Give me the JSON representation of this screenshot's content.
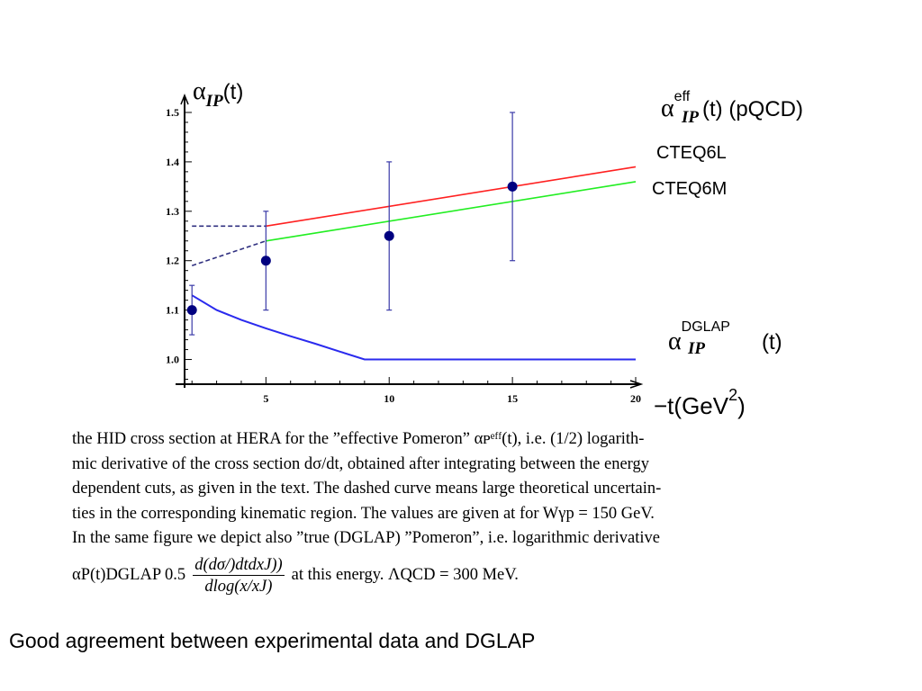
{
  "chart_data": {
    "type": "line",
    "title": "",
    "xlabel": "−t(GeV²)",
    "xlabel_main": "−t(GeV",
    "xlabel_sup": "2",
    "xlabel_close": ")",
    "ylabel_base": "α",
    "ylabel_sub": "IP",
    "ylabel_tail": "(t)",
    "xlim": [
      1.7,
      20
    ],
    "ylim": [
      0.95,
      1.52
    ],
    "x_ticks": [
      5,
      10,
      15,
      20
    ],
    "x_tick_labels": [
      "5",
      "10",
      "15",
      "20"
    ],
    "y_ticks": [
      1.0,
      1.1,
      1.2,
      1.3,
      1.4,
      1.5
    ],
    "y_tick_labels": [
      "1.0",
      "1.1",
      "1.2",
      "1.3",
      "1.4",
      "1.5"
    ],
    "grid": false,
    "colors": {
      "cteq6l": "#ff2020",
      "cteq6m": "#22ee22",
      "dglap": "#2a2aee",
      "dashed": "#303080",
      "points": "#000080",
      "errorbars": "#3a3aa8"
    },
    "series": [
      {
        "name": "CTEQ6L",
        "style": "solid",
        "x": [
          5,
          20
        ],
        "y": [
          1.27,
          1.39
        ]
      },
      {
        "name": "CTEQ6M",
        "style": "solid",
        "x": [
          5,
          20
        ],
        "y": [
          1.24,
          1.36
        ]
      },
      {
        "style": "dashed",
        "x": [
          2,
          5
        ],
        "y": [
          1.27,
          1.27
        ]
      },
      {
        "style": "dashed",
        "x": [
          2,
          5
        ],
        "y": [
          1.19,
          1.24
        ]
      },
      {
        "name": "DGLAP",
        "style": "solid",
        "x": [
          2,
          3,
          4,
          5,
          6,
          7,
          8,
          9,
          20
        ],
        "y": [
          1.13,
          1.1,
          1.08,
          1.063,
          1.047,
          1.032,
          1.016,
          1.0,
          1.0
        ]
      }
    ],
    "data_points": [
      {
        "x": 2,
        "y": 1.1,
        "err_low": 1.05,
        "err_high": 1.15
      },
      {
        "x": 5,
        "y": 1.2,
        "err_low": 1.1,
        "err_high": 1.3
      },
      {
        "x": 10,
        "y": 1.25,
        "err_low": 1.1,
        "err_high": 1.4
      },
      {
        "x": 15,
        "y": 1.35,
        "err_low": 1.2,
        "err_high": 1.5
      }
    ],
    "labels": {
      "pqcd_alpha": "α",
      "pqcd_sup": "eff",
      "pqcd_sub": "IP",
      "pqcd_tail": "(t)  (pQCD)",
      "cteq6l": "CTEQ6L",
      "cteq6m": "CTEQ6M",
      "dglap_alpha": "α",
      "dglap_sup": "DGLAP",
      "dglap_sub": "IP",
      "dglap_tail": "(t)"
    }
  },
  "caption": {
    "line1": "the HID cross section at HERA for the ”effective Pomeron” αᴘᵉᶠᶠ(t), i.e.  (1/2) logarith-",
    "line2": "mic derivative of the cross section dσ/dt, obtained after integrating between the energy",
    "line3": "dependent cuts, as given in the text. The dashed curve means large theoretical uncertain-",
    "line4": "ties in the corresponding kinematic region.  The values are given at for Wγp = 150 GeV.",
    "line5": "In the same figure we depict also ”true (DGLAP) ”Pomeron”, i.e.  logarithmic derivative",
    "formula_prefix": "αP(t)DGLAP  0.5",
    "formula_num": "d(dσ/)dtdxJ))",
    "formula_den": "dlog(x/xJ)",
    "formula_suffix": "at this energy.  ΛQCD = 300 MeV."
  },
  "bottom_note": "Good agreement between experimental data and DGLAP"
}
